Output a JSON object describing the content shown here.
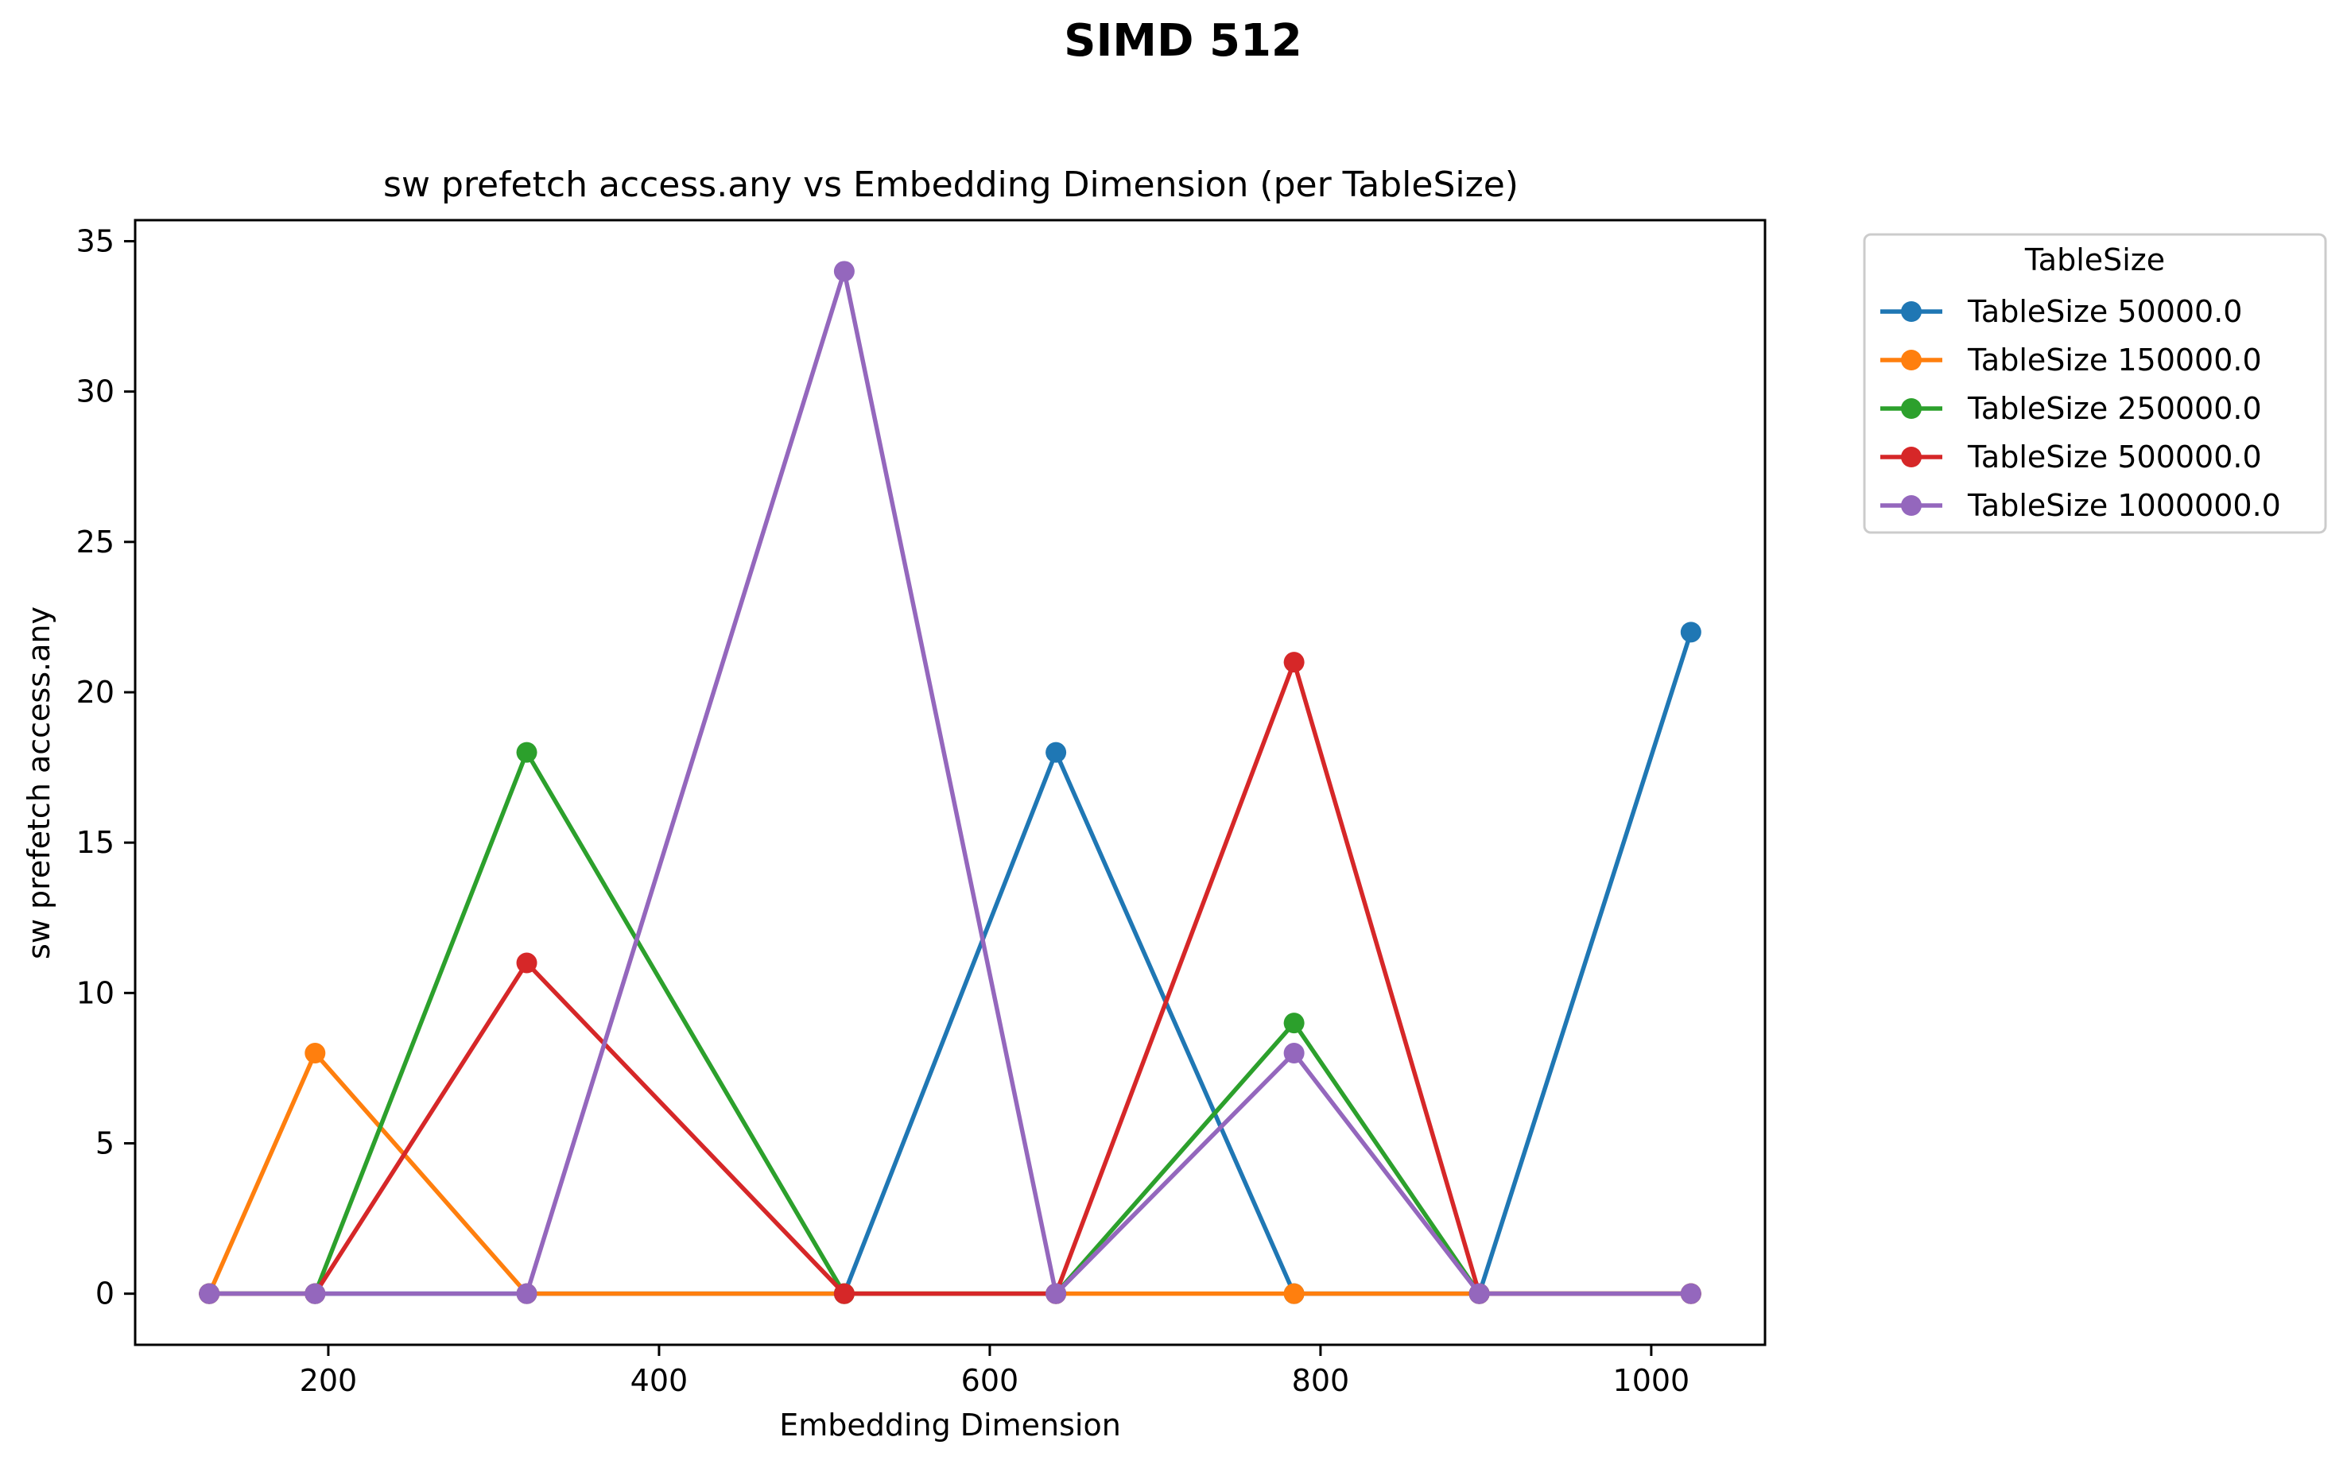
{
  "chart_data": {
    "type": "line",
    "suptitle": "SIMD 512",
    "title": "sw prefetch access.any vs Embedding Dimension (per TableSize)",
    "xlabel": "Embedding Dimension",
    "ylabel": "sw prefetch access.any",
    "xlim": [
      83.2,
      1068.8
    ],
    "ylim": [
      -1.7,
      35.7
    ],
    "xticks": [
      200,
      400,
      600,
      800,
      1000
    ],
    "yticks": [
      0,
      5,
      10,
      15,
      20,
      25,
      30,
      35
    ],
    "grid": false,
    "legend": {
      "title": "TableSize",
      "placement": "outside upper right"
    },
    "x": [
      128,
      192,
      320,
      512,
      640,
      784,
      896,
      1024
    ],
    "series": [
      {
        "name": "TableSize 50000.0",
        "color": "#1f77b4",
        "values": [
          0,
          0,
          0,
          0,
          18,
          0,
          0,
          22
        ]
      },
      {
        "name": "TableSize 150000.0",
        "color": "#ff7f0e",
        "values": [
          0,
          8,
          0,
          0,
          0,
          0,
          0,
          0
        ]
      },
      {
        "name": "TableSize 250000.0",
        "color": "#2ca02c",
        "values": [
          0,
          0,
          18,
          0,
          0,
          9,
          0,
          0
        ]
      },
      {
        "name": "TableSize 500000.0",
        "color": "#d62728",
        "values": [
          0,
          0,
          11,
          0,
          0,
          21,
          0,
          0
        ]
      },
      {
        "name": "TableSize 1000000.0",
        "color": "#9467bd",
        "values": [
          0,
          0,
          0,
          34,
          0,
          8,
          0,
          0
        ]
      }
    ]
  }
}
